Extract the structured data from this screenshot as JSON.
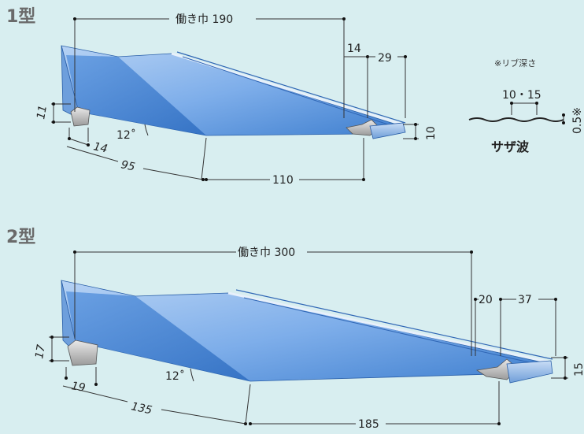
{
  "type1": {
    "title": "1型",
    "width_label": "働き巾 190",
    "dim_14_top": "14",
    "dim_29": "29",
    "dim_11": "11",
    "dim_14_bottom": "14",
    "dim_95": "95",
    "dim_110": "110",
    "dim_10": "10",
    "angle": "12˚"
  },
  "rib": {
    "note": "※リブ深さ",
    "pitch": "10・15",
    "depth": "0.5※",
    "name": "サザ波"
  },
  "type2": {
    "title": "2型",
    "width_label": "働き巾 300",
    "dim_20": "20",
    "dim_37": "37",
    "dim_17": "17",
    "dim_19": "19",
    "dim_135": "135",
    "dim_185": "185",
    "dim_15": "15",
    "angle": "12˚"
  },
  "colors": {
    "background": "#d8eef0",
    "panel_light": "#9cc2ee",
    "panel_dark": "#3f7fcf"
  }
}
